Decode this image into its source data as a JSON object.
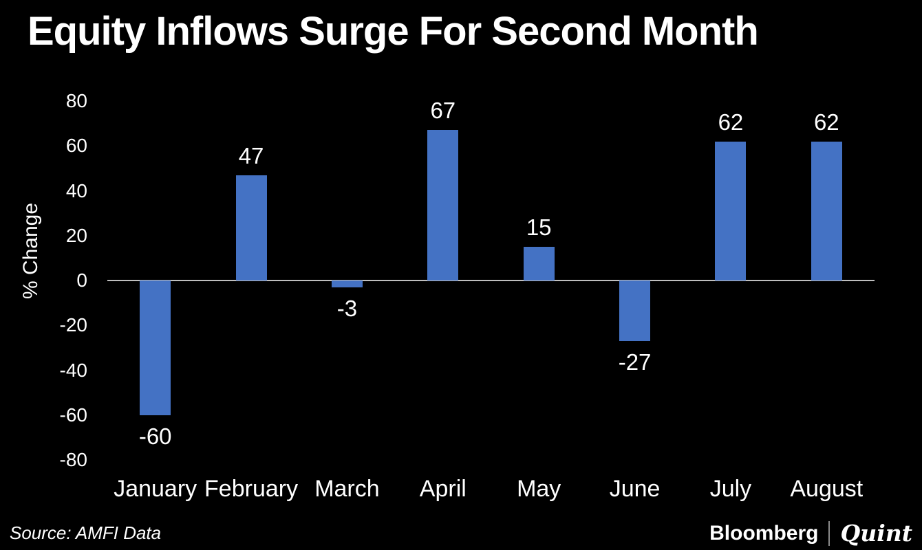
{
  "header": {
    "title": "Equity Inflows Surge For Second Month"
  },
  "chart_data": {
    "type": "bar",
    "title": "Equity Inflows Surge For Second Month",
    "categories": [
      "January",
      "February",
      "March",
      "April",
      "May",
      "June",
      "July",
      "August"
    ],
    "values": [
      -60,
      47,
      -3,
      67,
      15,
      -27,
      62,
      62
    ],
    "xlabel": "",
    "ylabel": "% Change",
    "ylim": [
      -80,
      80
    ],
    "yticks": [
      80,
      60,
      40,
      20,
      0,
      -20,
      -40,
      -60,
      -80
    ],
    "grid": false,
    "legend": "none",
    "data_labels": true,
    "bar_color": "#4472C4"
  },
  "footer": {
    "source": "Source: AMFI Data",
    "brand": {
      "primary": "Bloomberg",
      "secondary": "Quint"
    }
  },
  "colors": {
    "background": "#000000",
    "text": "#FFFFFF",
    "bar": "#4472C4",
    "axis_line": "#BFBFBF",
    "brand_divider": "#8A8A8A"
  }
}
